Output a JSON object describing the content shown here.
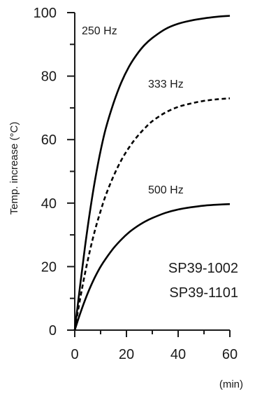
{
  "chart_data": {
    "type": "line",
    "title": "",
    "xlabel": "(min)",
    "ylabel": "Temp. increase (°C)",
    "xlim": [
      0,
      60
    ],
    "ylim": [
      0,
      100
    ],
    "xticks": [
      "0",
      "20",
      "40",
      "60"
    ],
    "yticks": [
      "0",
      "20",
      "40",
      "60",
      "80",
      "100"
    ],
    "grid": false,
    "legend": "none",
    "annotations": [
      "SP39-1002",
      "SP39-1101"
    ],
    "series": [
      {
        "name": "250 Hz",
        "style": "solid",
        "color": "#000000",
        "x": [
          0,
          2,
          4,
          6,
          8,
          10,
          12,
          15,
          18,
          21,
          24,
          27,
          30,
          35,
          40,
          45,
          50,
          55,
          60
        ],
        "y": [
          0,
          13.5,
          26.5,
          38,
          48,
          56.5,
          63.5,
          71.5,
          78,
          83,
          86.8,
          89.8,
          92,
          94.8,
          96.5,
          97.5,
          98.2,
          98.7,
          99
        ]
      },
      {
        "name": "333 Hz",
        "style": "dashed",
        "color": "#000000",
        "x": [
          0,
          2,
          4,
          6,
          8,
          10,
          12,
          15,
          18,
          21,
          24,
          27,
          30,
          35,
          40,
          45,
          50,
          55,
          60
        ],
        "y": [
          0,
          9.5,
          18,
          25.5,
          32,
          37.5,
          42.5,
          48.5,
          53.5,
          57.5,
          60.8,
          63.5,
          65.8,
          68.5,
          70.3,
          71.4,
          72.2,
          72.7,
          73
        ]
      },
      {
        "name": "500 Hz",
        "style": "solid",
        "color": "#000000",
        "x": [
          0,
          2,
          4,
          6,
          8,
          10,
          12,
          15,
          18,
          21,
          24,
          27,
          30,
          35,
          40,
          45,
          50,
          55,
          60
        ],
        "y": [
          0,
          5,
          9.5,
          13.5,
          17,
          20,
          22.5,
          25.8,
          28.5,
          30.8,
          32.6,
          34.1,
          35.3,
          36.9,
          38,
          38.7,
          39.2,
          39.5,
          39.7
        ]
      }
    ]
  }
}
